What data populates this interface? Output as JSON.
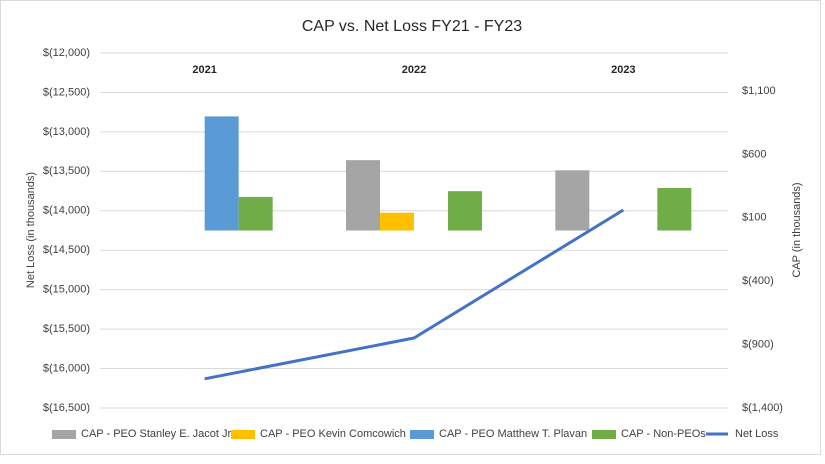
{
  "chart_data": {
    "type": "bar",
    "title": "CAP vs. Net Loss FY21 - FY23",
    "categories": [
      "2021",
      "2022",
      "2023"
    ],
    "y_label": "Net Loss (in thousands)",
    "y2_label": "CAP (in thousands)",
    "ylim": [
      -16500,
      -12000
    ],
    "yticks": [
      {
        "value": -12000,
        "label": "$(12,000)"
      },
      {
        "value": -12500,
        "label": "$(12,500)"
      },
      {
        "value": -13000,
        "label": "$(13,000)"
      },
      {
        "value": -13500,
        "label": "$(13,500)"
      },
      {
        "value": -14000,
        "label": "$(14,000)"
      },
      {
        "value": -14500,
        "label": "$(14,500)"
      },
      {
        "value": -15000,
        "label": "$(15,000)"
      },
      {
        "value": -15500,
        "label": "$(15,500)"
      },
      {
        "value": -16000,
        "label": "$(16,000)"
      },
      {
        "value": -16500,
        "label": "$(16,500)"
      }
    ],
    "y2lim": [
      -1400,
      1400
    ],
    "y2ticks": [
      {
        "value": 1100,
        "label": "$1,100"
      },
      {
        "value": 600,
        "label": "$600"
      },
      {
        "value": 100,
        "label": "$100"
      },
      {
        "value": -400,
        "label": "$(400)"
      },
      {
        "value": -900,
        "label": "$(900)"
      },
      {
        "value": -1400,
        "label": "$(1,400)"
      }
    ],
    "grid": true,
    "legend": "bottom",
    "series": [
      {
        "name": "CAP - PEO Stanley E. Jacot Jr.",
        "type": "bar",
        "axis": "y2",
        "color": "#a5a5a5",
        "values": [
          null,
          555,
          475
        ]
      },
      {
        "name": "CAP - PEO Kevin Comcowich",
        "type": "bar",
        "axis": "y2",
        "color": "#ffc000",
        "values": [
          null,
          140,
          null
        ]
      },
      {
        "name": "CAP - PEO Matthew T. Plavan",
        "type": "bar",
        "axis": "y2",
        "color": "#5b9bd5",
        "values": [
          900,
          null,
          null
        ]
      },
      {
        "name": "CAP - Non-PEOs",
        "type": "bar",
        "axis": "y2",
        "color": "#70ad47",
        "values": [
          265,
          310,
          335
        ]
      },
      {
        "name": "Net Loss",
        "type": "line",
        "color": "#4472c4",
        "values": [
          -16130,
          -15613,
          -13990
        ]
      }
    ]
  }
}
